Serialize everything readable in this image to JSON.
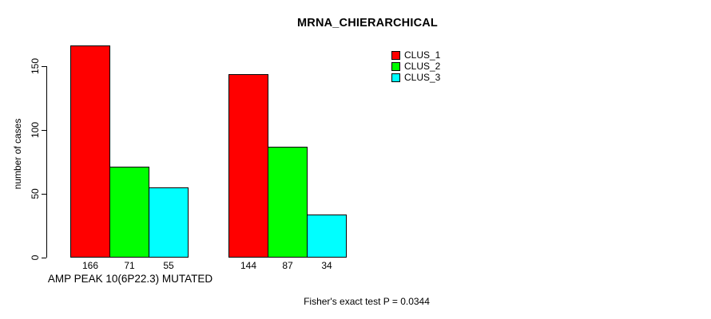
{
  "chart_data": {
    "type": "bar",
    "title": "MRNA_CHIERARCHICAL",
    "ylabel": "number of cases",
    "xlabel": "",
    "ylim": [
      0,
      170
    ],
    "yticks": [
      0,
      50,
      100,
      150
    ],
    "grid": false,
    "legend_position": "top-right",
    "bar_value_labels_shown": true,
    "series": [
      {
        "name": "CLUS_1",
        "color": "#FF0000"
      },
      {
        "name": "CLUS_2",
        "color": "#00FF00"
      },
      {
        "name": "CLUS_3",
        "color": "#00FFFF"
      }
    ],
    "groups": [
      {
        "label": "AMP PEAK 10(6P22.3) MUTATED",
        "values": [
          166,
          71,
          55
        ]
      },
      {
        "label": "",
        "values": [
          144,
          87,
          34
        ]
      }
    ],
    "annotation": "Fisher's exact test P = 0.0344"
  }
}
